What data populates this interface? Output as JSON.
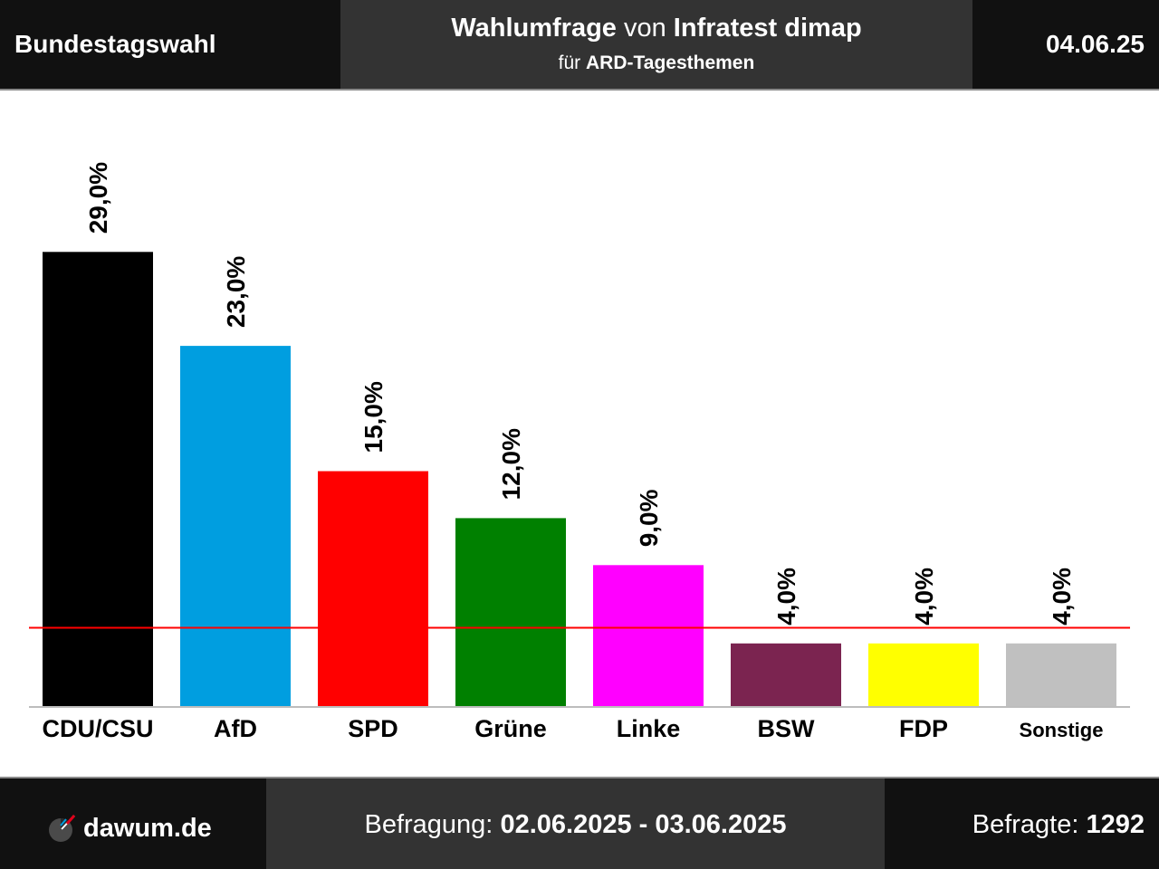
{
  "header": {
    "left": "Bundestagswahl",
    "title_part1": "Wahlumfrage",
    "title_part2": " von ",
    "title_part3": "Infratest dimap",
    "subtitle_part1": "für ",
    "subtitle_part2": "ARD-Tagesthemen",
    "date": "04.06.25"
  },
  "footer": {
    "logo_text": "dawum.de",
    "logo_icon": "pie-chart-logo-icon",
    "survey_label": "Befragung: ",
    "survey_period": "02.06.2025 - 03.06.2025",
    "respondents_label": "Befragte: ",
    "respondents_count": "1292"
  },
  "chart_data": {
    "type": "bar",
    "categories": [
      "CDU/CSU",
      "AfD",
      "SPD",
      "Grüne",
      "Linke",
      "BSW",
      "FDP",
      "Sonstige"
    ],
    "values": [
      29.0,
      23.0,
      15.0,
      12.0,
      9.0,
      4.0,
      4.0,
      4.0
    ],
    "value_labels": [
      "29,0%",
      "23,0%",
      "15,0%",
      "12,0%",
      "9,0%",
      "4,0%",
      "4,0%",
      "4,0%"
    ],
    "colors": [
      "#000000",
      "#009ee0",
      "#ff0000",
      "#008000",
      "#ff00ff",
      "#7b2450",
      "#ffff00",
      "#c0c0c0"
    ],
    "threshold": 5.0,
    "threshold_color": "#ff0000",
    "ylim": [
      0,
      29.0
    ],
    "grid": false,
    "legend": "none"
  }
}
